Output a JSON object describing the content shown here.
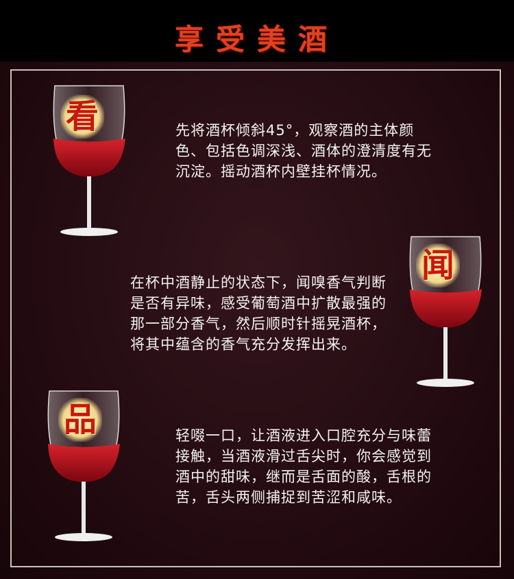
{
  "header": {
    "title": "享受美酒"
  },
  "steps": [
    {
      "char": "看",
      "text": "先将酒杯倾斜45°，观察酒的主体颜色、包括色调深浅、酒体的澄清度有无沉淀。摇动酒杯内壁挂杯情况。"
    },
    {
      "char": "闻",
      "text": "在杯中酒静止的状态下，闻嗅香气判断是否有异味，感受葡萄酒中扩散最强的那一部分香气，然后顺时针摇晃酒杯，将其中蕴含的香气充分发挥出来。"
    },
    {
      "char": "品",
      "text": "轻啜一口，让酒液进入口腔充分与味蕾接触，当酒液滑过舌尖时，你会感觉到酒中的甜味，继而是舌面的酸，舌根的苦，舌头两侧捕捉到苦涩和咸味。"
    }
  ],
  "colors": {
    "accent": "#e0421f",
    "wine": "#b5101c",
    "panel": "#230b11"
  }
}
